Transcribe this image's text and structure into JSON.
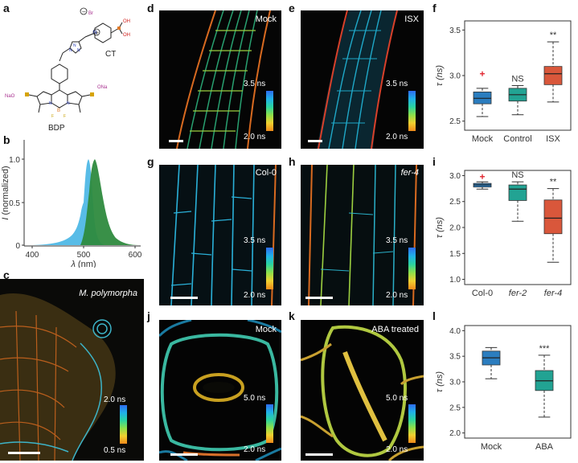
{
  "panel_labels": {
    "a": "a",
    "b": "b",
    "c": "c",
    "d": "d",
    "e": "e",
    "f": "f",
    "g": "g",
    "h": "h",
    "i": "i",
    "j": "j",
    "k": "k",
    "l": "l"
  },
  "structure": {
    "ct_label": "CT",
    "bdp_label": "BDP",
    "br": "Br",
    "oh1": "OH",
    "oh2": "OH",
    "na_left": "NaO",
    "na_right": "ONa",
    "b_atom": "B",
    "f_atom": "F",
    "n_atom": "N"
  },
  "spectrum": {
    "ylabel": "I (normalized)",
    "ylabel_italic": "I",
    "ylabel_rest": " (normalized)",
    "xlabel": "λ (nm)",
    "xlabel_italic": "λ",
    "xlabel_rest": " (nm)",
    "xticks": [
      "400",
      "500",
      "600"
    ],
    "yticks": [
      "0",
      "0.5",
      "1.0"
    ],
    "colors": {
      "absorption": "#4fb8e6",
      "emission": "#2e8a3e"
    }
  },
  "images": {
    "c": {
      "title": "M. polymorpha",
      "cbar_top": "2.0 ns",
      "cbar_bottom": "0.5 ns"
    },
    "d": {
      "title": "Mock",
      "cbar_top": "3.5 ns",
      "cbar_bottom": "2.0 ns"
    },
    "e": {
      "title": "ISX",
      "cbar_top": "3.5 ns",
      "cbar_bottom": "2.0 ns"
    },
    "g": {
      "title": "Col-0",
      "cbar_top": "3.5 ns",
      "cbar_bottom": "2.0 ns"
    },
    "h": {
      "title": "fer-4",
      "cbar_top": "3.5 ns",
      "cbar_bottom": "2.0 ns"
    },
    "j": {
      "title": "Mock",
      "cbar_top": "5.0 ns",
      "cbar_bottom": "2.0 ns"
    },
    "k": {
      "title": "ABA treated",
      "cbar_top": "5.0 ns",
      "cbar_bottom": "2.0 ns"
    }
  },
  "chart_data": [
    {
      "panel": "f",
      "type": "box",
      "ylabel": "τ (ns)",
      "ylim": [
        2.4,
        3.6
      ],
      "yticks": [
        2.5,
        3.0,
        3.5
      ],
      "categories": [
        "Mock",
        "Control",
        "ISX"
      ],
      "boxes": [
        {
          "min": 2.55,
          "q1": 2.69,
          "median": 2.75,
          "q3": 2.82,
          "max": 2.86,
          "outliers": [
            3.02
          ],
          "color": "#2b7dbf",
          "annotation": ""
        },
        {
          "min": 2.57,
          "q1": 2.72,
          "median": 2.79,
          "q3": 2.86,
          "max": 2.89,
          "outliers": [],
          "color": "#22a393",
          "annotation": "NS"
        },
        {
          "min": 2.71,
          "q1": 2.9,
          "median": 3.02,
          "q3": 3.1,
          "max": 3.37,
          "outliers": [],
          "color": "#d9573b",
          "annotation": "**"
        }
      ]
    },
    {
      "panel": "i",
      "type": "box",
      "ylabel": "τ (ns)",
      "ylim": [
        0.9,
        3.1
      ],
      "yticks": [
        1.0,
        1.5,
        2.0,
        2.5,
        3.0
      ],
      "categories": [
        "Col-0",
        "fer-2",
        "fer-4"
      ],
      "boxes": [
        {
          "min": 2.74,
          "q1": 2.78,
          "median": 2.82,
          "q3": 2.85,
          "max": 2.88,
          "outliers": [
            2.98
          ],
          "color": "#2b7dbf",
          "annotation": ""
        },
        {
          "min": 2.12,
          "q1": 2.52,
          "median": 2.74,
          "q3": 2.82,
          "max": 2.88,
          "outliers": [],
          "color": "#22a393",
          "annotation": "NS"
        },
        {
          "min": 1.33,
          "q1": 1.88,
          "median": 2.18,
          "q3": 2.53,
          "max": 2.75,
          "outliers": [],
          "color": "#d9573b",
          "annotation": "**"
        }
      ]
    },
    {
      "panel": "l",
      "type": "box",
      "ylabel": "τ (ns)",
      "ylim": [
        1.9,
        4.1
      ],
      "yticks": [
        2.0,
        2.5,
        3.0,
        3.5,
        4.0
      ],
      "categories": [
        "Mock",
        "ABA"
      ],
      "boxes": [
        {
          "min": 3.06,
          "q1": 3.33,
          "median": 3.47,
          "q3": 3.6,
          "max": 3.67,
          "outliers": [],
          "color": "#2b7dbf",
          "annotation": ""
        },
        {
          "min": 2.31,
          "q1": 2.83,
          "median": 3.02,
          "q3": 3.22,
          "max": 3.52,
          "outliers": [],
          "color": "#22a393",
          "annotation": "***"
        }
      ]
    }
  ]
}
